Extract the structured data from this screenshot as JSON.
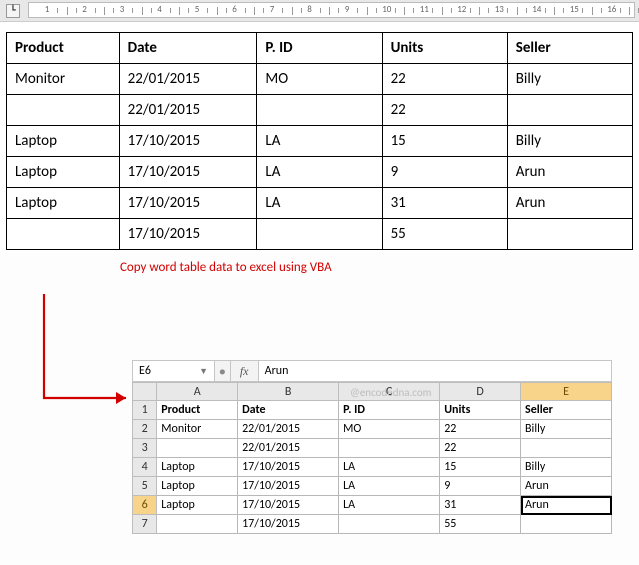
{
  "word": {
    "ruler_numbers": [
      1,
      2,
      3,
      4,
      5,
      6,
      7,
      8,
      9,
      10,
      11,
      12,
      13,
      14,
      15,
      16
    ],
    "table": {
      "columns": [
        "Product",
        "Date",
        "P. ID",
        "Units",
        "Seller"
      ],
      "rows": [
        [
          "Monitor",
          "22/01/2015",
          "MO",
          "22",
          "Billy"
        ],
        [
          "",
          "22/01/2015",
          "",
          "22",
          ""
        ],
        [
          "Laptop",
          "17/10/2015",
          "LA",
          "15",
          "Billy"
        ],
        [
          "Laptop",
          "17/10/2015",
          "LA",
          "9",
          "Arun"
        ],
        [
          "Laptop",
          "17/10/2015",
          "LA",
          "31",
          "Arun"
        ],
        [
          "",
          "17/10/2015",
          "",
          "55",
          ""
        ]
      ]
    }
  },
  "caption": "Copy word table data to excel using VBA",
  "arrow_color": "#d30000",
  "excel": {
    "namebox": "E6",
    "fx_label": "fx",
    "formula": "Arun",
    "col_headers": [
      "A",
      "B",
      "C",
      "D",
      "E"
    ],
    "row_headers": [
      "1",
      "2",
      "3",
      "4",
      "5",
      "6",
      "7"
    ],
    "selected_col": "E",
    "selected_row": "6",
    "rows": [
      {
        "bold": true,
        "cells": [
          "Product",
          "Date",
          "P. ID",
          "Units",
          "Seller"
        ]
      },
      {
        "bold": false,
        "cells": [
          "Monitor",
          "22/01/2015",
          "MO",
          "22",
          "Billy"
        ]
      },
      {
        "bold": false,
        "cells": [
          "",
          "22/01/2015",
          "",
          "22",
          ""
        ]
      },
      {
        "bold": false,
        "cells": [
          "Laptop",
          "17/10/2015",
          "LA",
          "15",
          "Billy"
        ]
      },
      {
        "bold": false,
        "cells": [
          "Laptop",
          "17/10/2015",
          "LA",
          "9",
          "Arun"
        ]
      },
      {
        "bold": false,
        "cells": [
          "Laptop",
          "17/10/2015",
          "LA",
          "31",
          "Arun"
        ]
      },
      {
        "bold": false,
        "cells": [
          "",
          "17/10/2015",
          "",
          "55",
          ""
        ]
      }
    ]
  },
  "watermark": "@encodedna.com"
}
